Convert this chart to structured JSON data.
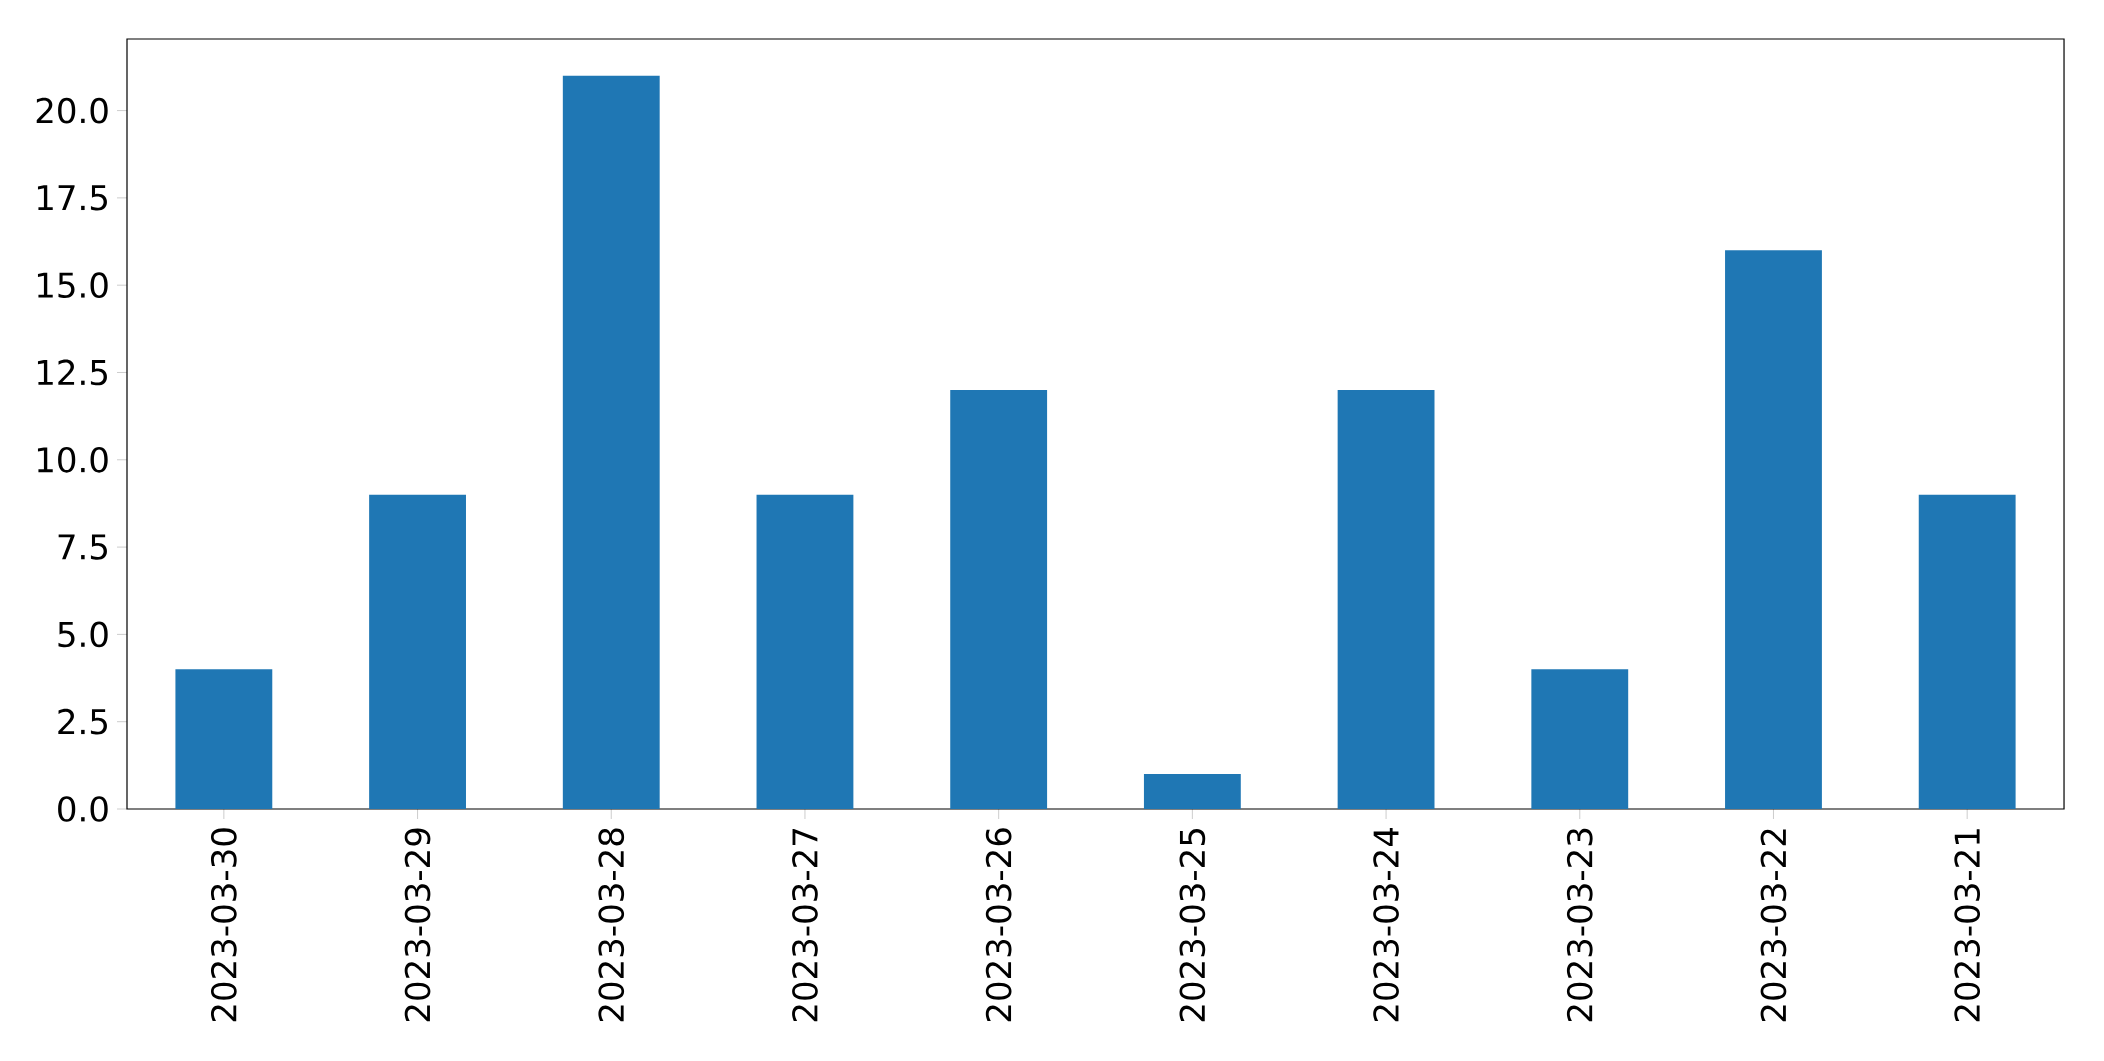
{
  "chart_data": {
    "type": "bar",
    "categories": [
      "2023-03-30",
      "2023-03-29",
      "2023-03-28",
      "2023-03-27",
      "2023-03-26",
      "2023-03-25",
      "2023-03-24",
      "2023-03-23",
      "2023-03-22",
      "2023-03-21"
    ],
    "values": [
      4,
      9,
      21,
      9,
      12,
      1,
      12,
      4,
      16,
      9
    ],
    "color": "#1f77b4",
    "ylim": [
      0,
      22.05
    ],
    "yticks": [
      {
        "value": 0,
        "label": "0.0"
      },
      {
        "value": 2.5,
        "label": "2.5"
      },
      {
        "value": 5,
        "label": "5.0"
      },
      {
        "value": 7.5,
        "label": "7.5"
      },
      {
        "value": 10,
        "label": "10.0"
      },
      {
        "value": 12.5,
        "label": "12.5"
      },
      {
        "value": 15,
        "label": "15.0"
      },
      {
        "value": 17.5,
        "label": "17.5"
      },
      {
        "value": 20,
        "label": "20.0"
      }
    ]
  }
}
